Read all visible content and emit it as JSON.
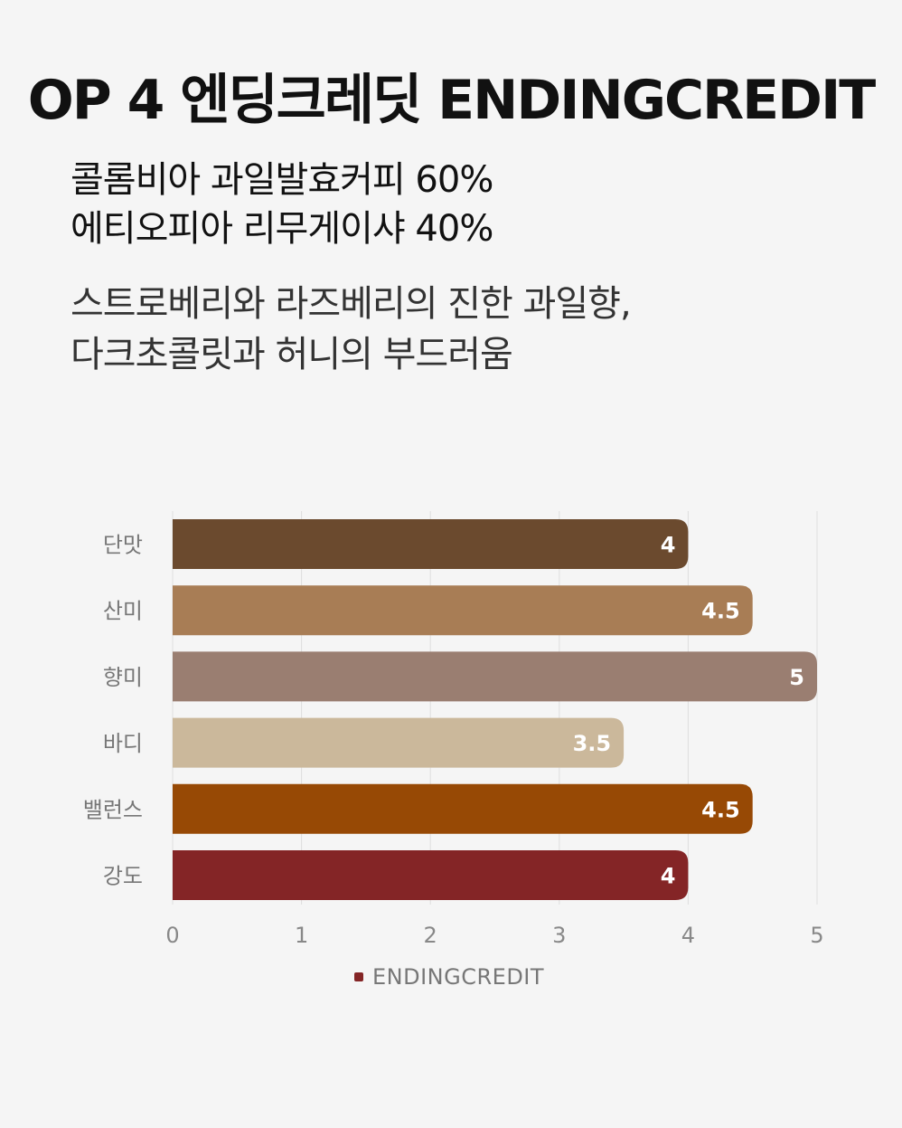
{
  "header": {
    "title": "OP 4 엔딩크레딧 ENDINGCREDIT",
    "blend_lines": [
      "콜롬비아 과일발효커피 60%",
      "에티오피아 리무게이샤 40%"
    ],
    "note_lines": [
      "스트로베리와 라즈베리의 진한 과일향,",
      "다크초콜릿과 허니의 부드러움"
    ]
  },
  "chart_data": {
    "type": "bar",
    "orientation": "horizontal",
    "categories": [
      "단맛",
      "산미",
      "향미",
      "바디",
      "밸런스",
      "강도"
    ],
    "series": [
      {
        "name": "ENDINGCREDIT",
        "values": [
          4,
          4.5,
          5,
          3.5,
          4.5,
          4
        ],
        "value_labels": [
          "4",
          "4.5",
          "5",
          "3.5",
          "4.5",
          "4"
        ],
        "colors": [
          "#6b4a2e",
          "#a87d55",
          "#9a7e71",
          "#cbb89b",
          "#974905",
          "#842526"
        ]
      }
    ],
    "xlim": [
      0,
      5
    ],
    "xticks": [
      "0",
      "1",
      "2",
      "3",
      "4",
      "5"
    ],
    "grid": true,
    "legend": "bottom",
    "legend_color": "#842526"
  }
}
